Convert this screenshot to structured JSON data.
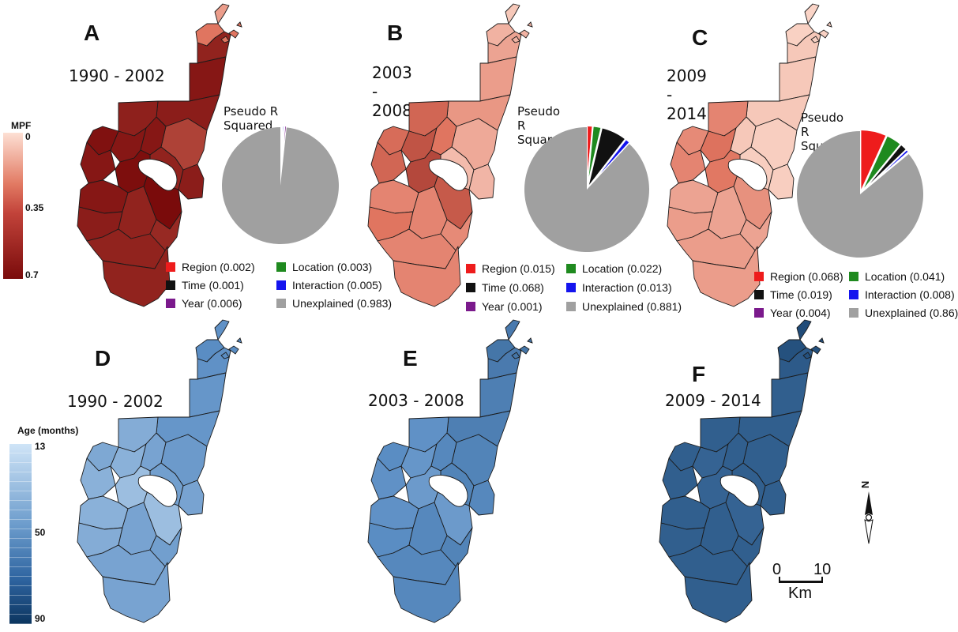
{
  "panels": [
    {
      "id": "A",
      "period": "1990 - 2002",
      "pie_title": "Pseudo R Squared",
      "palette": "red",
      "region_values": [
        0.22,
        0.35,
        0.62,
        0.66,
        0.64,
        0.52,
        0.63,
        0.66,
        0.66,
        0.68,
        0.62,
        0.64,
        0.66,
        0.69,
        0.7,
        0.66,
        0.64,
        0.62,
        0.6,
        0.62,
        0.62
      ],
      "pie": [
        {
          "name": "Region",
          "value": 0.002,
          "color": "#ee1c1c"
        },
        {
          "name": "Location",
          "value": 0.003,
          "color": "#1f8a1f"
        },
        {
          "name": "Time",
          "value": 0.001,
          "color": "#111111"
        },
        {
          "name": "Interaction",
          "value": 0.005,
          "color": "#1414ee"
        },
        {
          "name": "Year",
          "value": 0.006,
          "color": "#7b1a8c"
        },
        {
          "name": "Unexplained",
          "value": 0.983,
          "color": "#a0a0a0"
        }
      ],
      "legend": {
        "region": "Region (0.002)",
        "location": "Location (0.003)",
        "time": "Time (0.001)",
        "interaction": "Interaction (0.005)",
        "year": "Year (0.006)",
        "unexplained": "Unexplained (0.983)"
      }
    },
    {
      "id": "B",
      "period": "2003 - 2008",
      "pie_title": "Pseudo R Squared",
      "palette": "red",
      "region_values": [
        0.08,
        0.15,
        0.2,
        0.22,
        0.24,
        0.18,
        0.4,
        0.46,
        0.35,
        0.38,
        0.12,
        0.14,
        0.4,
        0.5,
        0.44,
        0.3,
        0.35,
        0.3,
        0.28,
        0.3,
        0.3
      ],
      "pie": [
        {
          "name": "Region",
          "value": 0.015,
          "color": "#ee1c1c"
        },
        {
          "name": "Location",
          "value": 0.022,
          "color": "#1f8a1f"
        },
        {
          "name": "Time",
          "value": 0.068,
          "color": "#111111"
        },
        {
          "name": "Interaction",
          "value": 0.013,
          "color": "#1414ee"
        },
        {
          "name": "Year",
          "value": 0.001,
          "color": "#7b1a8c"
        },
        {
          "name": "Unexplained",
          "value": 0.881,
          "color": "#a0a0a0"
        }
      ],
      "legend": {
        "region": "Region (0.015)",
        "location": "Location (0.022)",
        "time": "Time (0.068)",
        "interaction": "Interaction (0.013)",
        "year": "Year (0.001)",
        "unexplained": "Unexplained (0.881)"
      }
    },
    {
      "id": "C",
      "period": "2009 - 2014",
      "pie_title": "Pseudo R Squared",
      "palette": "red",
      "region_values": [
        0.04,
        0.05,
        0.08,
        0.08,
        0.08,
        0.06,
        0.3,
        0.36,
        0.08,
        0.28,
        0.06,
        0.06,
        0.3,
        0.34,
        0.26,
        0.2,
        0.22,
        0.2,
        0.2,
        0.22,
        0.22
      ],
      "pie": [
        {
          "name": "Region",
          "value": 0.068,
          "color": "#ee1c1c"
        },
        {
          "name": "Location",
          "value": 0.041,
          "color": "#1f8a1f"
        },
        {
          "name": "Time",
          "value": 0.019,
          "color": "#111111"
        },
        {
          "name": "Interaction",
          "value": 0.008,
          "color": "#1414ee"
        },
        {
          "name": "Year",
          "value": 0.004,
          "color": "#7b1a8c"
        },
        {
          "name": "Unexplained",
          "value": 0.86,
          "color": "#a0a0a0"
        }
      ],
      "legend": {
        "region": "Region (0.068)",
        "location": "Location (0.041)",
        "time": "Time (0.019)",
        "interaction": "Interaction (0.008)",
        "year": "Year (0.004)",
        "unexplained": "Unexplained (0.86)"
      }
    },
    {
      "id": "D",
      "period": "1990 - 2002",
      "palette": "blue",
      "region_values": [
        50,
        52,
        50,
        48,
        48,
        46,
        38,
        36,
        42,
        40,
        44,
        42,
        36,
        30,
        30,
        36,
        38,
        42,
        44,
        42,
        42
      ]
    },
    {
      "id": "E",
      "period": "2003 - 2008",
      "palette": "blue",
      "region_values": [
        60,
        62,
        60,
        58,
        58,
        56,
        50,
        48,
        54,
        52,
        56,
        54,
        50,
        46,
        46,
        50,
        52,
        54,
        56,
        54,
        54
      ]
    },
    {
      "id": "F",
      "period": "2009 - 2014",
      "palette": "blue",
      "region_values": [
        80,
        78,
        74,
        72,
        72,
        72,
        72,
        70,
        72,
        72,
        72,
        72,
        72,
        70,
        70,
        72,
        72,
        72,
        72,
        72,
        72
      ]
    }
  ],
  "mpf_scale": {
    "title": "MPF",
    "ticks": [
      "0",
      "0.35",
      "0.7"
    ],
    "min": 0,
    "max": 0.7
  },
  "age_scale": {
    "title": "Age (months)",
    "ticks": [
      "13",
      "50",
      "90"
    ],
    "min": 13,
    "max": 90
  },
  "north_arrow": {
    "letter": "N",
    "icon": "north-arrow-icon"
  },
  "scale_bar": {
    "left": "0",
    "right": "10",
    "unit": "Km"
  },
  "colors": {
    "red_light": "#fde0d4",
    "red_dark": "#7a0b0b",
    "blue_light": "#c9e0f5",
    "blue_dark": "#0e3d6e",
    "border": "#1a1a1a"
  }
}
